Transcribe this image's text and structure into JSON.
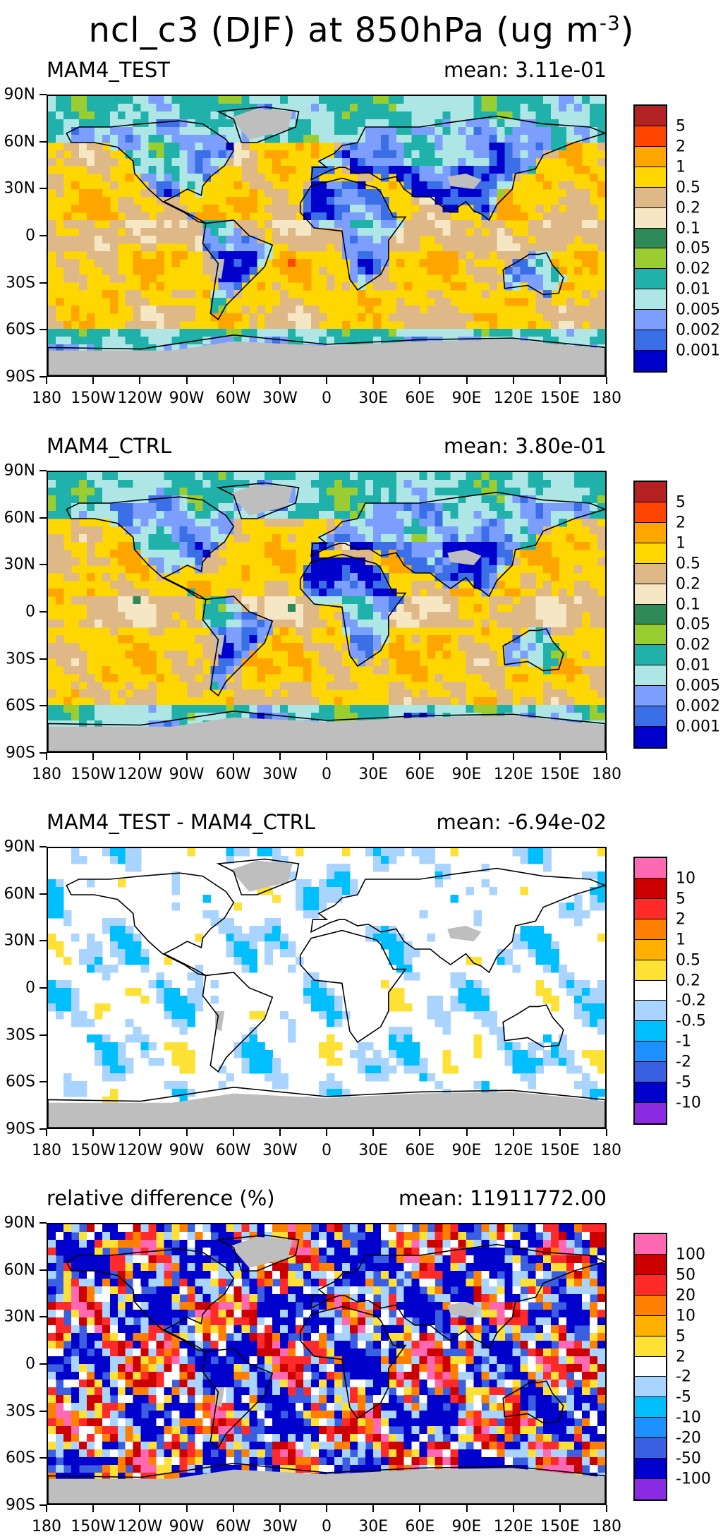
{
  "title": {
    "main": "ncl_c3 (DJF) at 850hPa (ug m",
    "sup": "-3",
    "close": ")"
  },
  "lat_labels": [
    "90N",
    "60N",
    "30N",
    "0",
    "30S",
    "60S",
    "90S"
  ],
  "lon_labels": [
    "180",
    "150W",
    "120W",
    "90W",
    "60W",
    "30W",
    "0",
    "30E",
    "60E",
    "90E",
    "120E",
    "150E",
    "180"
  ],
  "panels": [
    {
      "title": "MAM4_TEST",
      "mean": "mean: 3.11e-01",
      "kind": "abs",
      "seed": 3,
      "colorbar_labels": [
        "5",
        "2",
        "1",
        "0.5",
        "0.2",
        "0.1",
        "0.05",
        "0.02",
        "0.01",
        "0.005",
        "0.002",
        "0.001"
      ],
      "colors": [
        "#b22222",
        "#ff4500",
        "#ffa500",
        "#ffd700",
        "#deb887",
        "#f5e6c4",
        "#2e8b57",
        "#9acd32",
        "#20b2aa",
        "#aee6e6",
        "#7b9eff",
        "#3a6fe8",
        "#0000cd"
      ]
    },
    {
      "title": "MAM4_CTRL",
      "mean": "mean: 3.80e-01",
      "kind": "abs",
      "seed": 7,
      "colorbar_labels": [
        "5",
        "2",
        "1",
        "0.5",
        "0.2",
        "0.1",
        "0.05",
        "0.02",
        "0.01",
        "0.005",
        "0.002",
        "0.001"
      ],
      "colors": [
        "#b22222",
        "#ff4500",
        "#ffa500",
        "#ffd700",
        "#deb887",
        "#f5e6c4",
        "#2e8b57",
        "#9acd32",
        "#20b2aa",
        "#aee6e6",
        "#7b9eff",
        "#3a6fe8",
        "#0000cd"
      ]
    },
    {
      "title": "MAM4_TEST - MAM4_CTRL",
      "mean": "mean: -6.94e-02",
      "kind": "diff",
      "seed": 11,
      "colorbar_labels": [
        "10",
        "5",
        "2",
        "1",
        "0.5",
        "0.2",
        "-0.2",
        "-0.5",
        "-1",
        "-2",
        "-5",
        "-10"
      ],
      "colors": [
        "#ff69b4",
        "#cc0000",
        "#ff2a2a",
        "#ff7f00",
        "#ffb000",
        "#ffe135",
        "#ffffff",
        "#a8d4ff",
        "#00bfff",
        "#1e90ff",
        "#3a5fe0",
        "#0000cd",
        "#8a2be2"
      ]
    },
    {
      "title": "relative difference (%)",
      "mean": "mean: 11911772.00",
      "kind": "rel",
      "seed": 19,
      "colorbar_labels": [
        "100",
        "50",
        "20",
        "10",
        "5",
        "2",
        "-2",
        "-5",
        "-10",
        "-20",
        "-50",
        "-100"
      ],
      "colors": [
        "#ff69b4",
        "#cc0000",
        "#ff2a2a",
        "#ff7f00",
        "#ffb000",
        "#ffe135",
        "#ffffff",
        "#a8d4ff",
        "#00bfff",
        "#1e90ff",
        "#3a5fe0",
        "#0000cd",
        "#8a2be2"
      ]
    }
  ]
}
